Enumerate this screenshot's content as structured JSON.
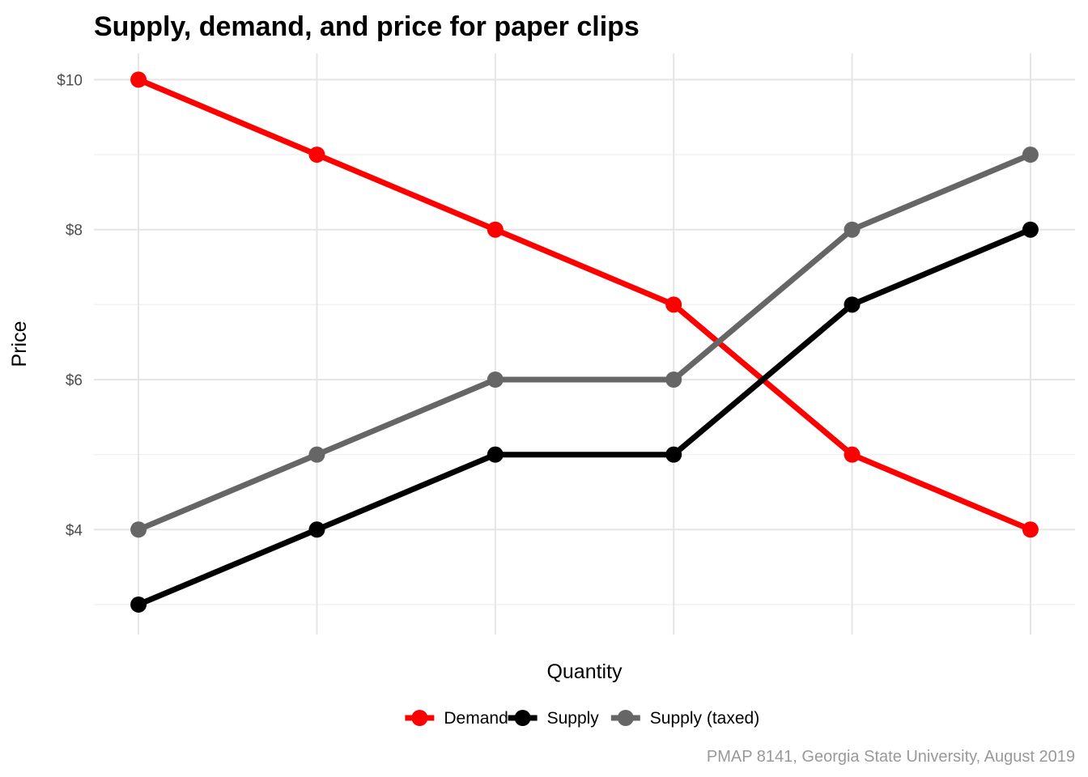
{
  "chart_data": {
    "type": "line",
    "title": "Supply, demand, and price for paper clips",
    "xlabel": "Quantity",
    "ylabel": "Price",
    "caption": "PMAP 8141, Georgia State University, August 2019",
    "x": [
      1,
      2,
      3,
      4,
      5,
      6
    ],
    "xlim": [
      0.75,
      6.25
    ],
    "ylim": [
      2.6,
      10.35
    ],
    "y_ticks": [
      4,
      6,
      8,
      10
    ],
    "y_tick_labels": [
      "$4",
      "$6",
      "$8",
      "$10"
    ],
    "y_minor_ticks": [
      3,
      5,
      7,
      9
    ],
    "grid": true,
    "legend_position": "bottom",
    "series": [
      {
        "name": "Demand",
        "color": "#ff0000",
        "values": [
          10,
          9,
          8,
          7,
          5,
          4
        ]
      },
      {
        "name": "Supply",
        "color": "#000000",
        "values": [
          3,
          4,
          5,
          5,
          7,
          8
        ]
      },
      {
        "name": "Supply (taxed)",
        "color": "#666666",
        "values": [
          4,
          5,
          6,
          6,
          8,
          9
        ]
      }
    ]
  }
}
